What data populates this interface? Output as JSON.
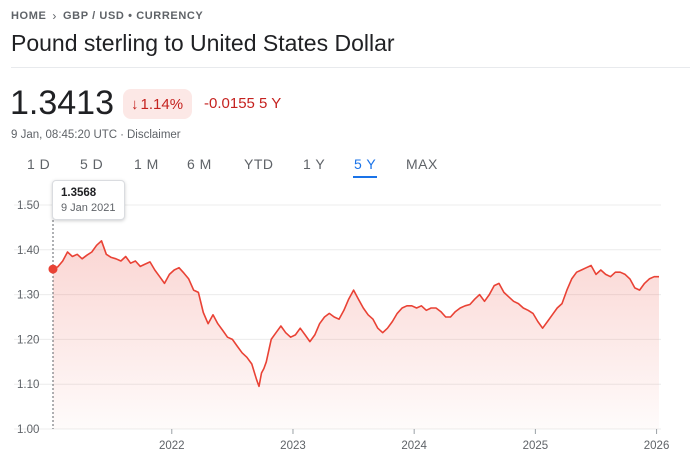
{
  "breadcrumb": {
    "home": "HOME",
    "section": "GBP / USD • CURRENCY"
  },
  "title": "Pound sterling to United States Dollar",
  "quote": {
    "price": "1.3413",
    "percent_change": "1.14%",
    "abs_change": "-0.0155 5 Y",
    "timestamp": "9 Jan, 08:45:20 UTC",
    "disclaimer": "Disclaimer"
  },
  "ranges": [
    "1 D",
    "5 D",
    "1 M",
    "6 M",
    "YTD",
    "1 Y",
    "5 Y",
    "MAX"
  ],
  "active_range": "5 Y",
  "tooltip": {
    "value": "1.3568",
    "date": "9 Jan 2021"
  },
  "colors": {
    "down": "#c5221f",
    "down_bg": "#fce8e6",
    "line": "#e94235",
    "accent": "#1a73e8"
  },
  "icons": {
    "breadcrumb_separator": "chevron-right-icon",
    "change_direction": "arrow-down-icon"
  },
  "chart_data": {
    "type": "area",
    "x_tick_labels": [
      "2022",
      "2023",
      "2024",
      "2025",
      "2026"
    ],
    "y_tick_labels": [
      "1.00",
      "1.10",
      "1.20",
      "1.30",
      "1.40",
      "1.50"
    ],
    "ylim": [
      1.0,
      1.5
    ],
    "xlim": [
      2021.02,
      2026.02
    ],
    "grid": true,
    "series": [
      {
        "x": [
          2021.02,
          2021.06,
          2021.1,
          2021.14,
          2021.18,
          2021.22,
          2021.26,
          2021.3,
          2021.34,
          2021.38,
          2021.42,
          2021.46,
          2021.5,
          2021.54,
          2021.58,
          2021.62,
          2021.66,
          2021.7,
          2021.74,
          2021.78,
          2021.82,
          2021.86,
          2021.9,
          2021.94,
          2021.98,
          2022.02,
          2022.06,
          2022.1,
          2022.14,
          2022.18,
          2022.22,
          2022.26,
          2022.3,
          2022.34,
          2022.38,
          2022.42,
          2022.46,
          2022.5,
          2022.54,
          2022.58,
          2022.62,
          2022.66,
          2022.7,
          2022.72,
          2022.74,
          2022.76,
          2022.78,
          2022.82,
          2022.86,
          2022.9,
          2022.94,
          2022.98,
          2023.02,
          2023.06,
          2023.1,
          2023.14,
          2023.18,
          2023.22,
          2023.26,
          2023.3,
          2023.34,
          2023.38,
          2023.42,
          2023.46,
          2023.5,
          2023.54,
          2023.58,
          2023.62,
          2023.66,
          2023.7,
          2023.74,
          2023.78,
          2023.82,
          2023.86,
          2023.9,
          2023.94,
          2023.98,
          2024.02,
          2024.06,
          2024.1,
          2024.14,
          2024.18,
          2024.22,
          2024.26,
          2024.3,
          2024.34,
          2024.38,
          2024.42,
          2024.46,
          2024.5,
          2024.54,
          2024.58,
          2024.62,
          2024.66,
          2024.7,
          2024.74,
          2024.78,
          2024.82,
          2024.86,
          2024.9,
          2024.94,
          2024.98,
          2025.02,
          2025.06,
          2025.1,
          2025.14,
          2025.18,
          2025.22,
          2025.26,
          2025.3,
          2025.34,
          2025.38,
          2025.42,
          2025.46,
          2025.5,
          2025.54,
          2025.58,
          2025.62,
          2025.66,
          2025.7,
          2025.74,
          2025.78,
          2025.82,
          2025.86,
          2025.9,
          2025.94,
          2025.98,
          2026.02
        ],
        "values": [
          1.357,
          1.362,
          1.375,
          1.395,
          1.385,
          1.39,
          1.38,
          1.388,
          1.395,
          1.41,
          1.42,
          1.39,
          1.383,
          1.38,
          1.375,
          1.385,
          1.37,
          1.375,
          1.363,
          1.368,
          1.373,
          1.355,
          1.34,
          1.325,
          1.345,
          1.355,
          1.36,
          1.348,
          1.335,
          1.31,
          1.305,
          1.26,
          1.235,
          1.255,
          1.235,
          1.22,
          1.205,
          1.2,
          1.185,
          1.17,
          1.16,
          1.145,
          1.11,
          1.095,
          1.125,
          1.135,
          1.15,
          1.2,
          1.215,
          1.23,
          1.215,
          1.205,
          1.21,
          1.225,
          1.21,
          1.195,
          1.21,
          1.235,
          1.25,
          1.258,
          1.25,
          1.245,
          1.265,
          1.29,
          1.31,
          1.29,
          1.27,
          1.255,
          1.245,
          1.225,
          1.215,
          1.225,
          1.24,
          1.258,
          1.27,
          1.275,
          1.275,
          1.27,
          1.275,
          1.265,
          1.27,
          1.27,
          1.262,
          1.25,
          1.25,
          1.262,
          1.27,
          1.275,
          1.278,
          1.29,
          1.3,
          1.285,
          1.3,
          1.32,
          1.325,
          1.305,
          1.295,
          1.285,
          1.28,
          1.27,
          1.265,
          1.258,
          1.24,
          1.225,
          1.24,
          1.255,
          1.27,
          1.28,
          1.31,
          1.335,
          1.35,
          1.355,
          1.36,
          1.365,
          1.345,
          1.355,
          1.345,
          1.34,
          1.35,
          1.35,
          1.345,
          1.335,
          1.315,
          1.31,
          1.325,
          1.335,
          1.34,
          1.34
        ]
      }
    ]
  }
}
